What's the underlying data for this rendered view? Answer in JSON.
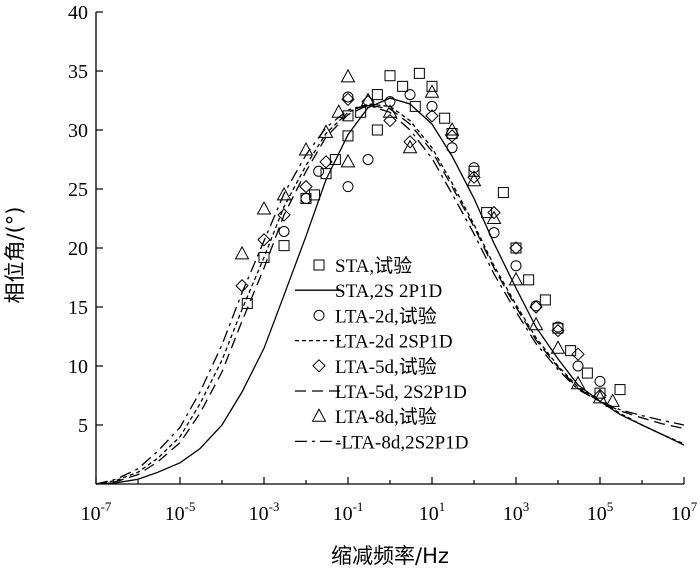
{
  "chart_data": {
    "type": "scatter",
    "xlabel": "缩减频率/Hz",
    "ylabel": "相位角/(°)",
    "x_scale": "log",
    "xlim": [
      1e-07,
      10000000.0
    ],
    "ylim": [
      0,
      40
    ],
    "x_ticks": [
      {
        "base": "10",
        "exp": "-7",
        "value": 1e-07
      },
      {
        "base": "10",
        "exp": "-5",
        "value": 1e-05
      },
      {
        "base": "10",
        "exp": "-3",
        "value": 0.001
      },
      {
        "base": "10",
        "exp": "-1",
        "value": 0.1
      },
      {
        "base": "10",
        "exp": "1",
        "value": 10.0
      },
      {
        "base": "10",
        "exp": "3",
        "value": 1000.0
      },
      {
        "base": "10",
        "exp": "5",
        "value": 100000.0
      },
      {
        "base": "10",
        "exp": "7",
        "value": 10000000.0
      }
    ],
    "y_ticks": [
      "5",
      "10",
      "15",
      "20",
      "25",
      "30",
      "35",
      "40"
    ],
    "legend_position": "center",
    "legend": [
      {
        "label": "STA,试验",
        "kind": "marker",
        "marker": "square"
      },
      {
        "label": "STA,2S 2P1D",
        "kind": "line",
        "dash": "solid"
      },
      {
        "label": "LTA-2d,试验",
        "kind": "marker",
        "marker": "circle"
      },
      {
        "label": "LTA-2d 2SP1D",
        "kind": "line",
        "dash": "short-dash"
      },
      {
        "label": "LTA-5d,试验",
        "kind": "marker",
        "marker": "diamond"
      },
      {
        "label": "LTA-5d, 2S2P1D",
        "kind": "line",
        "dash": "long-dash"
      },
      {
        "label": "LTA-8d,试验",
        "kind": "marker",
        "marker": "triangle"
      },
      {
        "label": "-LTA-8d,2S2P1D",
        "kind": "line",
        "dash": "dash-dot"
      }
    ],
    "series": [
      {
        "name": "STA,试验",
        "kind": "marker",
        "marker": "square",
        "x": [
          0.0004,
          0.001,
          0.003,
          0.01,
          0.016,
          0.03,
          0.05,
          0.1,
          0.1,
          0.2,
          0.5,
          0.5,
          1,
          2,
          4,
          5,
          10,
          20,
          30,
          100,
          200,
          500,
          1000,
          2000,
          5000,
          10000,
          20000,
          50000,
          100000,
          300000
        ],
        "y": [
          15.3,
          19.2,
          20.2,
          24.2,
          24.5,
          26.3,
          27.5,
          29.5,
          31.2,
          31.5,
          30,
          33,
          34.6,
          33.7,
          32,
          34.8,
          33.7,
          31,
          29.7,
          26.5,
          23,
          24.7,
          20,
          17.3,
          15.6,
          13.2,
          11.3,
          9.4,
          7.7,
          8.0
        ]
      },
      {
        "name": "LTA-2d,试验",
        "kind": "marker",
        "marker": "circle",
        "x": [
          0.003,
          0.01,
          0.02,
          0.1,
          0.1,
          0.3,
          1,
          3,
          10,
          30,
          100,
          300,
          1000,
          3000,
          10000,
          30000,
          100000
        ],
        "y": [
          21.4,
          24.2,
          26.5,
          25.2,
          32.8,
          27.5,
          32.4,
          33,
          32,
          28.5,
          26.8,
          21.3,
          18.5,
          15.1,
          13.3,
          10,
          8.7
        ]
      },
      {
        "name": "LTA-5d,试验",
        "kind": "marker",
        "marker": "diamond",
        "x": [
          0.0003,
          0.001,
          0.003,
          0.01,
          0.03,
          0.1,
          0.3,
          1,
          3,
          10,
          30,
          100,
          300,
          1000,
          3000,
          10000,
          30000,
          100000
        ],
        "y": [
          16.8,
          20.7,
          22.8,
          25.2,
          27.3,
          32.6,
          32.4,
          30.8,
          29,
          31.2,
          29.5,
          26,
          23,
          20,
          15,
          13,
          11,
          7.5
        ]
      },
      {
        "name": "LTA-8d,试验",
        "kind": "marker",
        "marker": "triangle",
        "x": [
          0.0003,
          0.001,
          0.003,
          0.01,
          0.03,
          0.06,
          0.1,
          0.1,
          0.3,
          1,
          3,
          10,
          30,
          100,
          300,
          1000,
          3000,
          10000,
          30000,
          100000,
          200000
        ],
        "y": [
          19.5,
          23.3,
          24.5,
          28.3,
          29.8,
          31.5,
          34.5,
          27.3,
          32.5,
          31.5,
          28.5,
          33.2,
          30,
          25.7,
          22.5,
          17.3,
          13.5,
          11.5,
          8.5,
          7.3,
          7.0
        ]
      },
      {
        "name": "STA,2S 2P1D",
        "kind": "line",
        "dash": "solid",
        "x": [
          1e-07,
          3e-07,
          1e-06,
          3e-06,
          1e-05,
          3e-05,
          0.0001,
          0.0003,
          0.001,
          0.003,
          0.01,
          0.03,
          0.1,
          0.3,
          1,
          3,
          10,
          30,
          100,
          300,
          1000,
          3000,
          10000.0,
          30000.0,
          100000.0,
          300000.0,
          1000000.0,
          3000000.0,
          10000000.0
        ],
        "y": [
          0,
          0.1,
          0.4,
          1.0,
          1.8,
          3.0,
          5.0,
          7.8,
          11.5,
          16.0,
          21.0,
          25.8,
          29.6,
          31.9,
          32.7,
          32.2,
          30.5,
          27.8,
          24.2,
          20.4,
          16.6,
          13.3,
          10.6,
          8.4,
          7.0,
          5.9,
          5.0,
          4.2,
          3.3
        ]
      },
      {
        "name": "LTA-2d 2SP1D",
        "kind": "line",
        "dash": "short-dash",
        "x": [
          1e-07,
          3e-07,
          1e-06,
          3e-06,
          1e-05,
          3e-05,
          0.0001,
          0.0003,
          0.001,
          0.003,
          0.01,
          0.03,
          0.1,
          0.3,
          1,
          3,
          10,
          30,
          100,
          300,
          1000,
          3000,
          10000.0,
          30000.0,
          100000.0,
          300000.0,
          1000000.0,
          3000000.0,
          10000000.0
        ],
        "y": [
          0,
          0.3,
          1.0,
          2.2,
          4.0,
          6.8,
          10.5,
          14.8,
          19.2,
          23.5,
          27.0,
          29.7,
          31.5,
          32.2,
          32.0,
          30.8,
          28.5,
          25.5,
          22.0,
          18.5,
          15.2,
          12.4,
          10.0,
          8.2,
          7.0,
          6.0,
          5.0,
          4.2,
          3.4
        ]
      },
      {
        "name": "LTA-5d, 2S2P1D",
        "kind": "line",
        "dash": "long-dash",
        "x": [
          1e-07,
          3e-07,
          1e-06,
          3e-06,
          1e-05,
          3e-05,
          0.0001,
          0.0003,
          0.001,
          0.003,
          0.01,
          0.03,
          0.1,
          0.3,
          1,
          3,
          10,
          30,
          100,
          300,
          1000,
          3000,
          10000.0,
          30000.0,
          100000.0,
          300000.0,
          1000000.0,
          3000000.0,
          10000000.0
        ],
        "y": [
          0,
          0.2,
          0.8,
          1.9,
          3.5,
          6.0,
          9.5,
          13.8,
          18.3,
          22.8,
          26.5,
          29.4,
          31.3,
          32.1,
          31.8,
          30.5,
          28.2,
          25.2,
          21.8,
          18.3,
          15.0,
          12.2,
          9.9,
          8.1,
          7.0,
          6.2,
          5.6,
          5.1,
          4.7
        ]
      },
      {
        "name": "-LTA-8d,2S2P1D",
        "kind": "line",
        "dash": "dash-dot",
        "x": [
          1e-07,
          3e-07,
          1e-06,
          3e-06,
          1e-05,
          3e-05,
          0.0001,
          0.0003,
          0.001,
          0.003,
          0.01,
          0.03,
          0.1,
          0.3,
          1,
          3,
          10,
          30,
          100,
          300,
          1000,
          3000,
          10000.0,
          30000.0,
          100000.0,
          300000.0,
          1000000.0,
          3000000.0,
          10000000.0
        ],
        "y": [
          0,
          0.4,
          1.3,
          2.8,
          4.8,
          7.8,
          11.8,
          16.2,
          20.6,
          24.6,
          27.9,
          30.2,
          31.7,
          32.1,
          31.5,
          30.0,
          27.6,
          24.6,
          21.2,
          17.8,
          14.6,
          11.9,
          9.7,
          8.0,
          7.0,
          6.3,
          5.8,
          5.4,
          5.0
        ]
      }
    ]
  }
}
